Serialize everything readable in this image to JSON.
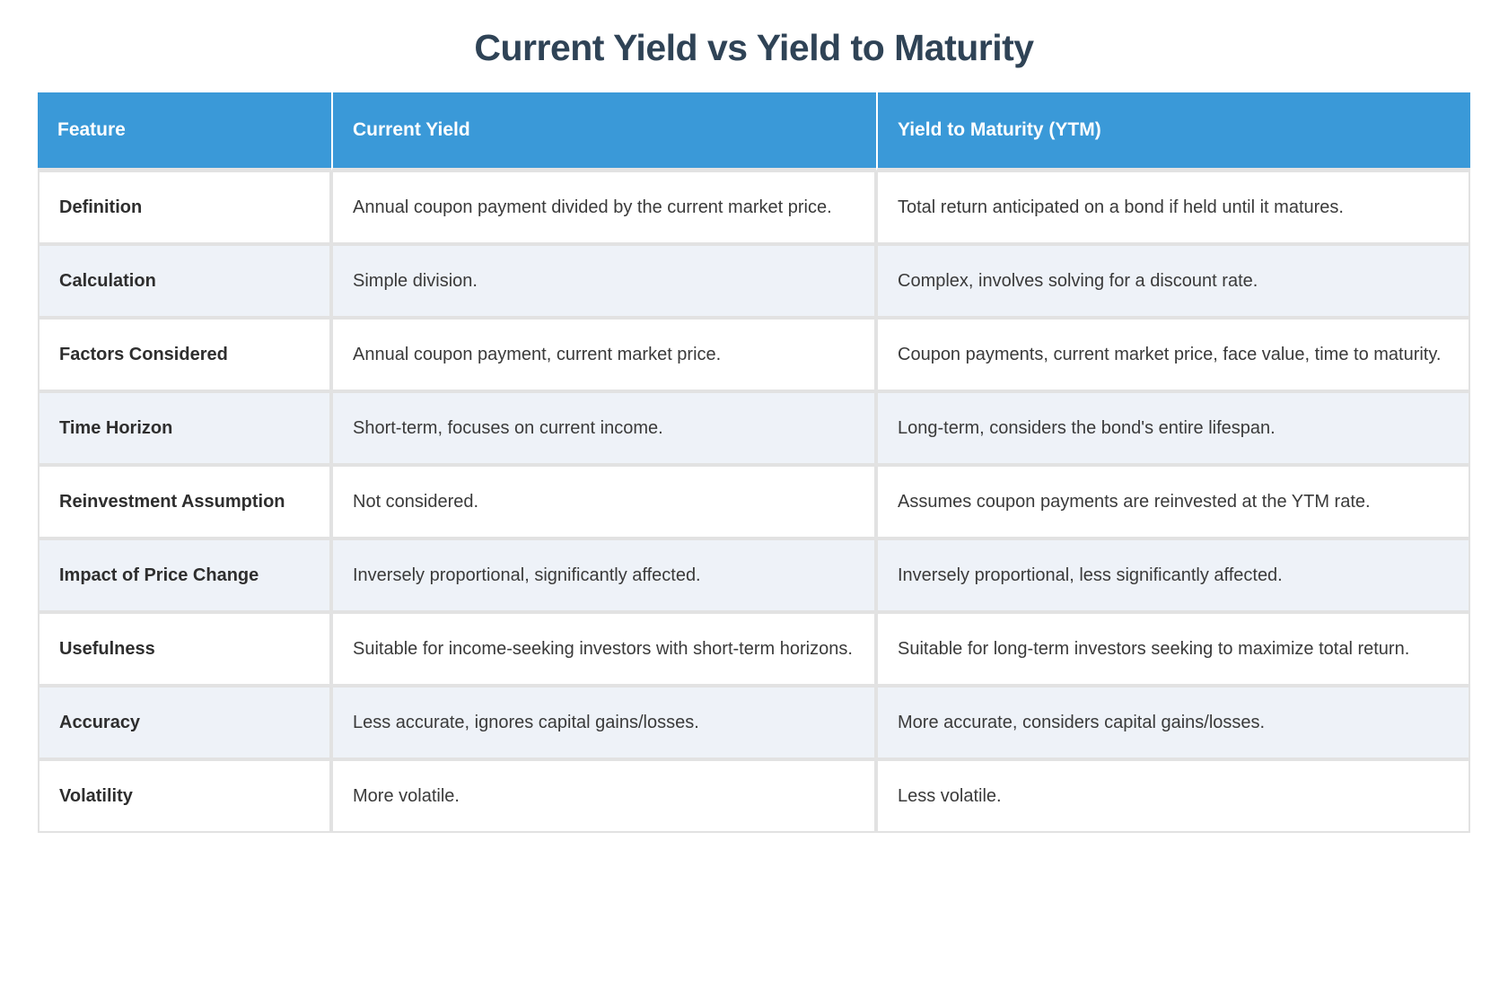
{
  "page": {
    "title": "Current Yield vs Yield to Maturity"
  },
  "colors": {
    "header_bg": "#3a99d8",
    "header_text": "#ffffff",
    "title": "#2f4356",
    "row_bg": "#ffffff",
    "row_alt_bg": "#eef2f8",
    "grid": "#e2e2e2",
    "body_text": "#3a3a3a",
    "feature_text": "#2e2e2e"
  },
  "table": {
    "headers": [
      "Feature",
      "Current Yield",
      "Yield to Maturity (YTM)"
    ],
    "rows": [
      {
        "feature": "Definition",
        "current_yield": "Annual coupon payment divided by the current market price.",
        "ytm": "Total return anticipated on a bond if held until it matures."
      },
      {
        "feature": "Calculation",
        "current_yield": "Simple division.",
        "ytm": "Complex, involves solving for a discount rate."
      },
      {
        "feature": "Factors Considered",
        "current_yield": "Annual coupon payment, current market price.",
        "ytm": "Coupon payments, current market price, face value, time to maturity."
      },
      {
        "feature": "Time Horizon",
        "current_yield": "Short-term, focuses on current income.",
        "ytm": "Long-term, considers the bond's entire lifespan."
      },
      {
        "feature": "Reinvestment Assumption",
        "current_yield": "Not considered.",
        "ytm": "Assumes coupon payments are reinvested at the YTM rate."
      },
      {
        "feature": "Impact of Price Change",
        "current_yield": "Inversely proportional, significantly affected.",
        "ytm": "Inversely proportional, less significantly affected."
      },
      {
        "feature": "Usefulness",
        "current_yield": "Suitable for income-seeking investors with short-term horizons.",
        "ytm": "Suitable for long-term investors seeking to maximize total return."
      },
      {
        "feature": "Accuracy",
        "current_yield": "Less accurate, ignores capital gains/losses.",
        "ytm": "More accurate, considers capital gains/losses."
      },
      {
        "feature": "Volatility",
        "current_yield": "More volatile.",
        "ytm": "Less volatile."
      }
    ]
  }
}
